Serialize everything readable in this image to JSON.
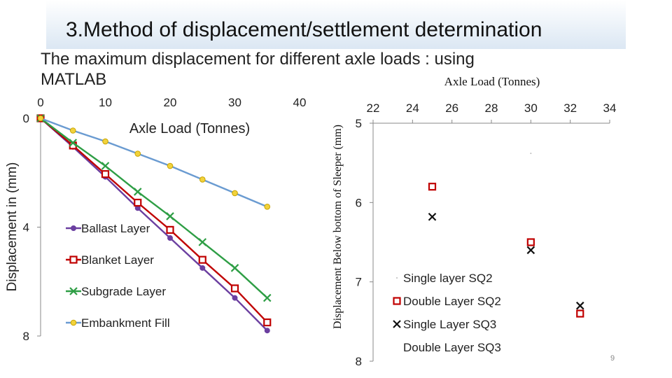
{
  "slide": {
    "title_number": "3.",
    "title_text": "Method of displacement/settlement determination",
    "subtitle": "The maximum displacement for different axle loads : using MATLAB",
    "page_number": "9"
  },
  "chart_data": [
    {
      "type": "line",
      "xlabel": "Axle Load (Tonnes)",
      "ylabel": "Displacement in (mm)",
      "xlim": [
        0,
        40
      ],
      "ylim": [
        0,
        8
      ],
      "y_inverted": true,
      "xticks": [
        "0",
        "10",
        "20",
        "30",
        "40"
      ],
      "yticks": [
        "0",
        "4",
        "8"
      ],
      "x_axis_position": "top",
      "legend_position": "center-left",
      "x": [
        0,
        5,
        10,
        15,
        20,
        25,
        30,
        35
      ],
      "series": [
        {
          "name": "Ballast Layer",
          "color": "#6b3fa0",
          "marker": "circle",
          "values": [
            0,
            1.05,
            2.15,
            3.3,
            4.4,
            5.5,
            6.6,
            7.8
          ]
        },
        {
          "name": "Blanket Layer",
          "color": "#c00000",
          "marker": "square",
          "values": [
            0,
            1.0,
            2.05,
            3.1,
            4.1,
            5.2,
            6.25,
            7.5
          ]
        },
        {
          "name": "Subgrade Layer",
          "color": "#2e9e45",
          "marker": "x",
          "values": [
            0,
            0.9,
            1.75,
            2.7,
            3.6,
            4.55,
            5.5,
            6.6
          ]
        },
        {
          "name": "Embankment Fill",
          "color": "#6a9bd1",
          "marker": "circle-yellow",
          "values": [
            0,
            0.45,
            0.85,
            1.3,
            1.75,
            2.25,
            2.75,
            3.25
          ]
        }
      ]
    },
    {
      "type": "scatter",
      "title": "Axle Load (Tonnes)",
      "ylabel": "Displacement Below bottom of Sleeper (mm)",
      "xlim": [
        22,
        34
      ],
      "ylim": [
        5,
        8
      ],
      "y_inverted": true,
      "xticks": [
        "22",
        "24",
        "26",
        "28",
        "30",
        "32",
        "34"
      ],
      "yticks": [
        "5",
        "6",
        "7",
        "8"
      ],
      "x_axis_position": "top",
      "legend_position": "bottom-left",
      "series": [
        {
          "name": "Single layer SQ2",
          "marker": "dot",
          "color": "#bbbbbb",
          "points": [
            [
              30,
              5.38
            ]
          ]
        },
        {
          "name": "Double Layer SQ2",
          "marker": "square",
          "color": "#c00000",
          "points": [
            [
              25,
              5.8
            ],
            [
              30,
              6.5
            ],
            [
              32.5,
              7.4
            ]
          ]
        },
        {
          "name": "Single Layer SQ3",
          "marker": "x",
          "color": "#111111",
          "points": [
            [
              25,
              6.18
            ],
            [
              30,
              6.6
            ],
            [
              32.5,
              7.3
            ]
          ]
        },
        {
          "name": "Double Layer SQ3",
          "marker": "none",
          "color": "#111111",
          "points": []
        }
      ]
    }
  ]
}
